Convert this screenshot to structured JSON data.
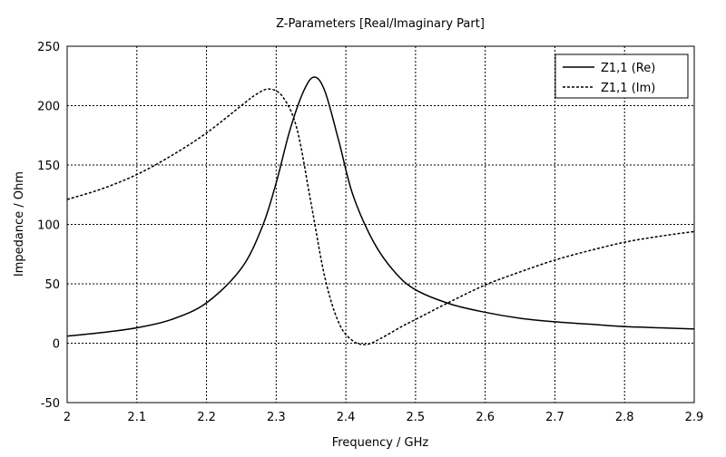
{
  "chart_data": {
    "type": "line",
    "title": "Z-Parameters [Real/Imaginary Part]",
    "xlabel": "Frequency / GHz",
    "ylabel": "Impedance / Ohm",
    "xlim": [
      2.0,
      2.9
    ],
    "ylim": [
      -50,
      250
    ],
    "xticks": [
      "2",
      "2.1",
      "2.2",
      "2.3",
      "2.4",
      "2.5",
      "2.6",
      "2.7",
      "2.8",
      "2.9"
    ],
    "xtick_values": [
      2.0,
      2.1,
      2.2,
      2.3,
      2.4,
      2.5,
      2.6,
      2.7,
      2.8,
      2.9
    ],
    "yticks": [
      "-50",
      "0",
      "50",
      "100",
      "150",
      "200",
      "250"
    ],
    "ytick_values": [
      -50,
      0,
      50,
      100,
      150,
      200,
      250
    ],
    "grid": true,
    "grid_style": "dashed",
    "legend_position": "top-right",
    "series": [
      {
        "name": "Z1,1 (Re)",
        "line_style": "solid",
        "color": "#000000",
        "x": [
          2.0,
          2.05,
          2.1,
          2.15,
          2.2,
          2.25,
          2.28,
          2.3,
          2.32,
          2.34,
          2.355,
          2.37,
          2.39,
          2.41,
          2.44,
          2.47,
          2.5,
          2.55,
          2.6,
          2.65,
          2.7,
          2.75,
          2.8,
          2.85,
          2.9
        ],
        "y": [
          6,
          9,
          13,
          20,
          34,
          63,
          98,
          135,
          180,
          213,
          224,
          212,
          170,
          125,
          85,
          60,
          45,
          33,
          26,
          21,
          18,
          16,
          14,
          13,
          12
        ]
      },
      {
        "name": "Z1,1 (Im)",
        "line_style": "dashed",
        "color": "#000000",
        "x": [
          2.0,
          2.05,
          2.1,
          2.15,
          2.2,
          2.25,
          2.27,
          2.29,
          2.31,
          2.33,
          2.35,
          2.37,
          2.39,
          2.41,
          2.43,
          2.45,
          2.48,
          2.5,
          2.55,
          2.6,
          2.65,
          2.7,
          2.75,
          2.8,
          2.85,
          2.9
        ],
        "y": [
          121,
          130,
          142,
          158,
          177,
          200,
          209,
          214,
          207,
          180,
          118,
          55,
          17,
          2,
          -1,
          4,
          14,
          20,
          35,
          49,
          60,
          70,
          78,
          85,
          90,
          94
        ]
      }
    ]
  }
}
